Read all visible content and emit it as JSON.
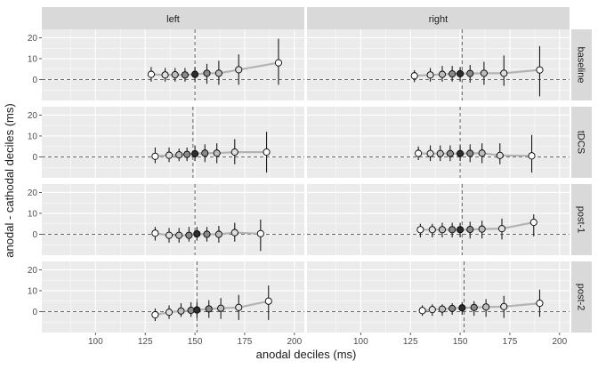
{
  "chart_data": {
    "type": "scatter",
    "xlabel": "anodal deciles (ms)",
    "ylabel": "anodal - cathodal deciles (ms)",
    "xlim": [
      73,
      205
    ],
    "ylim": [
      -10,
      24
    ],
    "x_ticks": [
      100,
      125,
      150,
      175,
      200
    ],
    "y_ticks": [
      0,
      10,
      20
    ],
    "columns": [
      "left",
      "right"
    ],
    "rows": [
      "baseline",
      "tDCS",
      "post-1",
      "post-2"
    ],
    "grid": true,
    "colors": {
      "panel_bg": "#ebebeb",
      "strip_bg": "#d9d9d9",
      "grid_major": "#ffffff",
      "line": "#b3b3b3",
      "errorbar": "#1a1a1a",
      "point_outline": "#000000",
      "point_fill_light": "#ffffff",
      "point_fill_dark": "#2d2d2d"
    },
    "panels": [
      {
        "row": "baseline",
        "col": "left",
        "vline": 150,
        "x": [
          128,
          135,
          140,
          145,
          150,
          156,
          162,
          172,
          192
        ],
        "y": [
          2.5,
          2.2,
          2.3,
          2.2,
          2.5,
          3.0,
          3.0,
          4.7,
          8.0
        ],
        "lo": [
          -1.0,
          -1.0,
          -1.0,
          -1.0,
          -1.0,
          -2.0,
          -2.5,
          -2.5,
          -2.5
        ],
        "hi": [
          6.0,
          5.5,
          5.5,
          5.5,
          6.0,
          7.5,
          9.0,
          12.0,
          19.5
        ]
      },
      {
        "row": "baseline",
        "col": "right",
        "vline": 151,
        "x": [
          127,
          135,
          141,
          146,
          150,
          155,
          162,
          172,
          190
        ],
        "y": [
          1.8,
          2.2,
          2.5,
          2.7,
          2.8,
          2.9,
          3.0,
          3.0,
          4.6
        ],
        "lo": [
          -1.2,
          -1.0,
          -1.0,
          -1.0,
          -1.0,
          -1.5,
          -2.5,
          -3.0,
          -8.0
        ],
        "hi": [
          4.5,
          5.5,
          6.5,
          6.5,
          6.0,
          7.0,
          8.5,
          11.5,
          16.0
        ]
      },
      {
        "row": "tDCS",
        "col": "left",
        "vline": 149,
        "x": [
          130,
          137,
          142,
          146,
          150,
          155,
          161,
          170,
          186
        ],
        "y": [
          0.3,
          0.8,
          1.0,
          1.2,
          1.5,
          1.8,
          1.8,
          2.3,
          2.3
        ],
        "lo": [
          -3.0,
          -2.5,
          -2.0,
          -2.0,
          -2.0,
          -2.5,
          -3.0,
          -3.5,
          -7.5
        ],
        "hi": [
          4.5,
          4.5,
          4.0,
          4.5,
          5.5,
          6.0,
          6.5,
          8.5,
          12.0
        ]
      },
      {
        "row": "tDCS",
        "col": "right",
        "vline": 150,
        "x": [
          129,
          135,
          140,
          145,
          150,
          155,
          161,
          170,
          186
        ],
        "y": [
          1.7,
          1.6,
          1.6,
          1.6,
          1.6,
          1.7,
          1.8,
          0.7,
          0.5
        ],
        "lo": [
          -1.5,
          -2.0,
          -2.0,
          -2.0,
          -2.0,
          -2.5,
          -3.0,
          -3.5,
          -7.5
        ],
        "hi": [
          5.0,
          5.5,
          5.5,
          5.5,
          5.5,
          6.0,
          6.5,
          6.5,
          10.5
        ]
      },
      {
        "row": "post-1",
        "col": "left",
        "vline": 150,
        "x": [
          130,
          137,
          142,
          147,
          151,
          156,
          162,
          170,
          183
        ],
        "y": [
          0.5,
          -0.5,
          -0.5,
          -0.5,
          0.2,
          0.0,
          0.0,
          0.8,
          0.3
        ],
        "lo": [
          -3.0,
          -4.0,
          -4.0,
          -3.5,
          -3.0,
          -3.5,
          -4.0,
          -3.5,
          -8.0
        ],
        "hi": [
          3.5,
          3.0,
          3.0,
          3.5,
          3.5,
          3.5,
          4.0,
          5.5,
          7.0
        ]
      },
      {
        "row": "post-1",
        "col": "right",
        "vline": 151,
        "x": [
          130,
          136,
          141,
          146,
          150,
          155,
          161,
          171,
          187
        ],
        "y": [
          2.2,
          2.2,
          2.2,
          2.2,
          2.2,
          2.3,
          2.5,
          2.7,
          5.7
        ],
        "lo": [
          -1.5,
          -1.5,
          -1.5,
          -1.5,
          -1.5,
          -2.0,
          -2.0,
          -2.5,
          -1.0
        ],
        "hi": [
          5.0,
          5.0,
          5.5,
          5.5,
          5.5,
          6.0,
          6.5,
          7.5,
          9.5
        ]
      },
      {
        "row": "post-2",
        "col": "left",
        "vline": 151,
        "x": [
          130,
          137,
          143,
          148,
          151,
          157,
          163,
          172,
          187
        ],
        "y": [
          -1.5,
          -0.3,
          0.3,
          0.6,
          0.8,
          1.3,
          1.6,
          2.0,
          5.0
        ],
        "lo": [
          -4.5,
          -3.5,
          -2.5,
          -2.5,
          -3.0,
          -3.0,
          -3.5,
          -4.0,
          -4.0
        ],
        "hi": [
          1.5,
          3.0,
          4.0,
          4.5,
          4.5,
          5.5,
          6.5,
          8.0,
          12.5
        ]
      },
      {
        "row": "post-2",
        "col": "right",
        "vline": 152,
        "x": [
          131,
          136,
          141,
          146,
          151,
          157,
          163,
          172,
          190
        ],
        "y": [
          0.5,
          1.0,
          1.2,
          1.5,
          1.8,
          2.0,
          2.2,
          2.4,
          4.0
        ],
        "lo": [
          -2.0,
          -2.0,
          -2.0,
          -1.5,
          -1.5,
          -2.0,
          -2.5,
          -3.0,
          -2.5
        ],
        "hi": [
          3.0,
          3.5,
          3.5,
          4.0,
          4.5,
          5.0,
          6.0,
          7.5,
          10.5
        ]
      }
    ]
  }
}
